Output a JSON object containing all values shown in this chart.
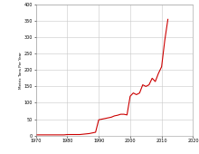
{
  "title": "",
  "ylabel": "Metric Tons Per Year",
  "xlabel": "",
  "x_ticks": [
    1970,
    1980,
    1990,
    2000,
    2010,
    2020
  ],
  "y_ticks": [
    0,
    50,
    100,
    150,
    200,
    250,
    300,
    350,
    400
  ],
  "xlim": [
    1970,
    2020
  ],
  "ylim": [
    0,
    400
  ],
  "line_color": "#cc0000",
  "bg_color": "#ffffff",
  "grid_color": "#c8c8c8",
  "years": [
    1970,
    1971,
    1972,
    1973,
    1974,
    1975,
    1976,
    1977,
    1978,
    1979,
    1980,
    1981,
    1982,
    1983,
    1984,
    1985,
    1986,
    1987,
    1988,
    1989,
    1990,
    1991,
    1992,
    1993,
    1994,
    1995,
    1996,
    1997,
    1998,
    1999,
    2000,
    2001,
    2002,
    2003,
    2004,
    2005,
    2006,
    2007,
    2008,
    2009,
    2010,
    2011,
    2012
  ],
  "values": [
    2,
    2,
    2,
    2,
    2,
    2,
    2,
    2,
    2,
    2,
    3,
    3,
    3,
    3,
    3,
    4,
    5,
    6,
    8,
    10,
    48,
    50,
    52,
    54,
    56,
    60,
    62,
    65,
    65,
    63,
    120,
    130,
    125,
    130,
    155,
    150,
    155,
    175,
    165,
    190,
    210,
    290,
    355
  ]
}
